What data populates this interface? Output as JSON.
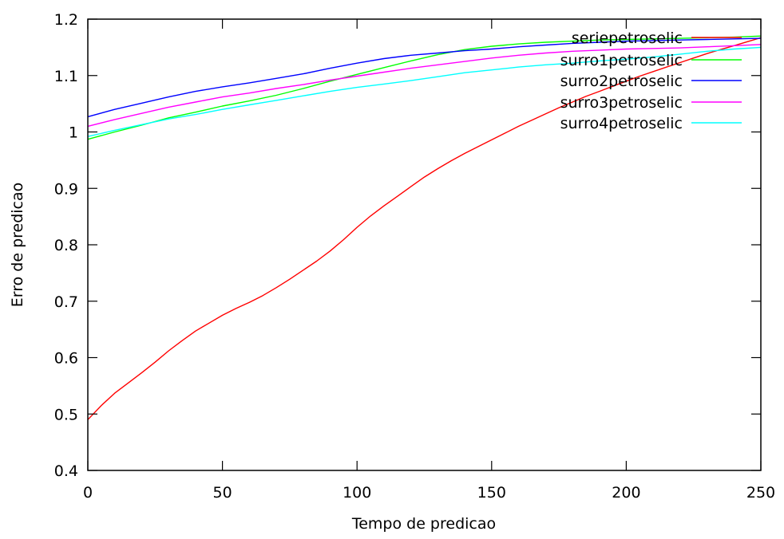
{
  "chart_data": {
    "type": "line",
    "xlabel": "Tempo de predicao",
    "ylabel": "Erro de predicao",
    "xlim": [
      0,
      250
    ],
    "ylim": [
      0.4,
      1.2
    ],
    "xticks": [
      0,
      50,
      100,
      150,
      200,
      250
    ],
    "yticks": [
      0.4,
      0.5,
      0.6,
      0.7,
      0.8,
      0.9,
      1.0,
      1.1,
      1.2
    ],
    "ytick_labels": [
      "0.4",
      "0.5",
      "0.6",
      "0.7",
      "0.8",
      "0.9",
      "1",
      "1.1",
      "1.2"
    ],
    "grid": false,
    "legend_position": "top-right",
    "series": [
      {
        "name": "seriepetroselic",
        "color": "#ff0000",
        "x": [
          0,
          5,
          10,
          15,
          20,
          25,
          30,
          35,
          40,
          45,
          50,
          55,
          60,
          65,
          70,
          75,
          80,
          85,
          90,
          95,
          100,
          105,
          110,
          115,
          120,
          125,
          130,
          135,
          140,
          145,
          150,
          155,
          160,
          165,
          170,
          175,
          180,
          185,
          190,
          195,
          200,
          205,
          210,
          215,
          220,
          225,
          230,
          235,
          240,
          245,
          250
        ],
        "values": [
          0.49,
          0.515,
          0.537,
          0.555,
          0.573,
          0.592,
          0.612,
          0.63,
          0.647,
          0.661,
          0.675,
          0.687,
          0.698,
          0.71,
          0.724,
          0.739,
          0.755,
          0.771,
          0.789,
          0.809,
          0.831,
          0.851,
          0.869,
          0.886,
          0.903,
          0.92,
          0.935,
          0.949,
          0.962,
          0.974,
          0.986,
          0.998,
          1.01,
          1.021,
          1.032,
          1.043,
          1.053,
          1.063,
          1.072,
          1.081,
          1.09,
          1.099,
          1.107,
          1.115,
          1.123,
          1.131,
          1.139,
          1.146,
          1.153,
          1.16,
          1.167
        ]
      },
      {
        "name": "surro1petroselic",
        "color": "#00ff00",
        "x": [
          0,
          10,
          20,
          30,
          40,
          50,
          60,
          70,
          80,
          90,
          100,
          110,
          120,
          130,
          140,
          150,
          160,
          170,
          180,
          190,
          200,
          210,
          220,
          230,
          240,
          250
        ],
        "values": [
          0.987,
          1.0,
          1.012,
          1.025,
          1.035,
          1.046,
          1.055,
          1.065,
          1.077,
          1.09,
          1.102,
          1.114,
          1.126,
          1.137,
          1.146,
          1.152,
          1.156,
          1.159,
          1.161,
          1.163,
          1.164,
          1.165,
          1.166,
          1.167,
          1.168,
          1.17
        ]
      },
      {
        "name": "surro2petroselic",
        "color": "#0000ff",
        "x": [
          0,
          10,
          20,
          30,
          40,
          50,
          60,
          70,
          80,
          90,
          100,
          110,
          120,
          130,
          140,
          150,
          160,
          170,
          180,
          190,
          200,
          210,
          220,
          230,
          240,
          250
        ],
        "values": [
          1.027,
          1.04,
          1.051,
          1.062,
          1.072,
          1.08,
          1.087,
          1.095,
          1.103,
          1.113,
          1.122,
          1.13,
          1.136,
          1.14,
          1.144,
          1.147,
          1.151,
          1.154,
          1.157,
          1.159,
          1.161,
          1.162,
          1.163,
          1.164,
          1.165,
          1.166
        ]
      },
      {
        "name": "surro3petroselic",
        "color": "#ff00ff",
        "x": [
          0,
          10,
          20,
          30,
          40,
          50,
          60,
          70,
          80,
          90,
          100,
          110,
          120,
          130,
          140,
          150,
          160,
          170,
          180,
          190,
          200,
          210,
          220,
          230,
          240,
          250
        ],
        "values": [
          1.01,
          1.022,
          1.033,
          1.044,
          1.053,
          1.062,
          1.069,
          1.077,
          1.084,
          1.092,
          1.099,
          1.106,
          1.113,
          1.119,
          1.125,
          1.131,
          1.136,
          1.14,
          1.143,
          1.145,
          1.147,
          1.148,
          1.149,
          1.151,
          1.153,
          1.155
        ]
      },
      {
        "name": "surro4petroselic",
        "color": "#00ffff",
        "x": [
          0,
          10,
          20,
          30,
          40,
          50,
          60,
          70,
          80,
          90,
          100,
          110,
          120,
          130,
          140,
          150,
          160,
          170,
          180,
          190,
          200,
          210,
          220,
          230,
          240,
          250
        ],
        "values": [
          0.992,
          1.003,
          1.013,
          1.023,
          1.031,
          1.04,
          1.048,
          1.056,
          1.064,
          1.072,
          1.079,
          1.085,
          1.091,
          1.098,
          1.105,
          1.11,
          1.115,
          1.119,
          1.122,
          1.126,
          1.129,
          1.133,
          1.138,
          1.143,
          1.147,
          1.15
        ]
      }
    ]
  }
}
